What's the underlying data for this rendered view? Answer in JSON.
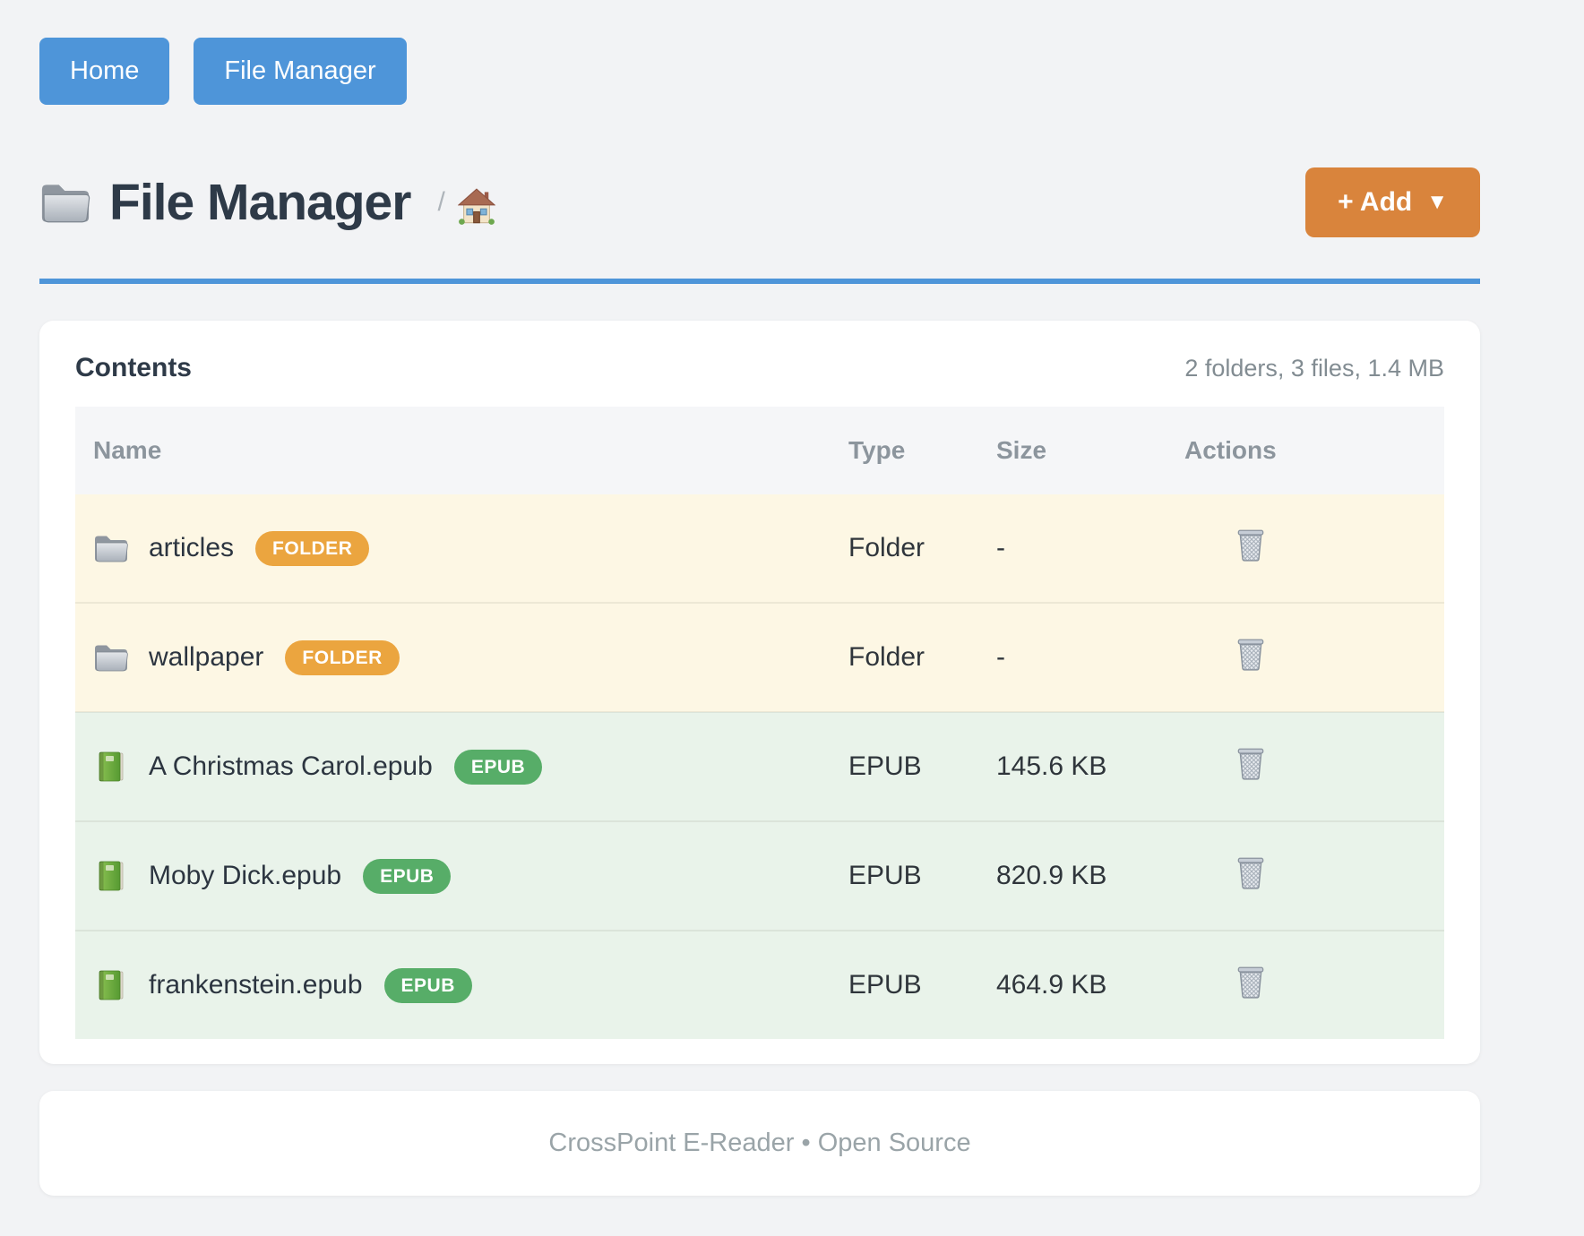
{
  "nav": {
    "buttons": [
      {
        "label": "Home"
      },
      {
        "label": "File Manager"
      }
    ]
  },
  "header": {
    "title": "File Manager",
    "title_icon": "folder-icon",
    "breadcrumb_separator": "/",
    "breadcrumb_home_icon": "home-icon",
    "add_button": {
      "label": "+ Add",
      "caret": "▼",
      "color": "#d9843c"
    }
  },
  "contents": {
    "heading": "Contents",
    "summary": "2 folders, 3 files, 1.4 MB",
    "table": {
      "columns": [
        "Name",
        "Type",
        "Size",
        "Actions"
      ],
      "action_icon": "trash-icon",
      "rows": [
        {
          "kind": "folder",
          "icon": "folder-icon",
          "name": "articles",
          "badge": "FOLDER",
          "badge_color": "#eba53f",
          "type": "Folder",
          "size": "-"
        },
        {
          "kind": "folder",
          "icon": "folder-icon",
          "name": "wallpaper",
          "badge": "FOLDER",
          "badge_color": "#eba53f",
          "type": "Folder",
          "size": "-"
        },
        {
          "kind": "epub",
          "icon": "book-icon",
          "name": "A Christmas Carol.epub",
          "badge": "EPUB",
          "badge_color": "#57ad68",
          "type": "EPUB",
          "size": "145.6 KB"
        },
        {
          "kind": "epub",
          "icon": "book-icon",
          "name": "Moby Dick.epub",
          "badge": "EPUB",
          "badge_color": "#57ad68",
          "type": "EPUB",
          "size": "820.9 KB"
        },
        {
          "kind": "epub",
          "icon": "book-icon",
          "name": "frankenstein.epub",
          "badge": "EPUB",
          "badge_color": "#57ad68",
          "type": "EPUB",
          "size": "464.9 KB"
        }
      ]
    }
  },
  "footer": {
    "text": "CrossPoint E-Reader • Open Source"
  },
  "colors": {
    "accent_blue": "#4e95d9",
    "accent_orange": "#d9843c",
    "badge_orange": "#eba53f",
    "badge_green": "#57ad68",
    "folder_row_bg": "#fdf7e4",
    "epub_row_bg": "#e9f3ea"
  }
}
